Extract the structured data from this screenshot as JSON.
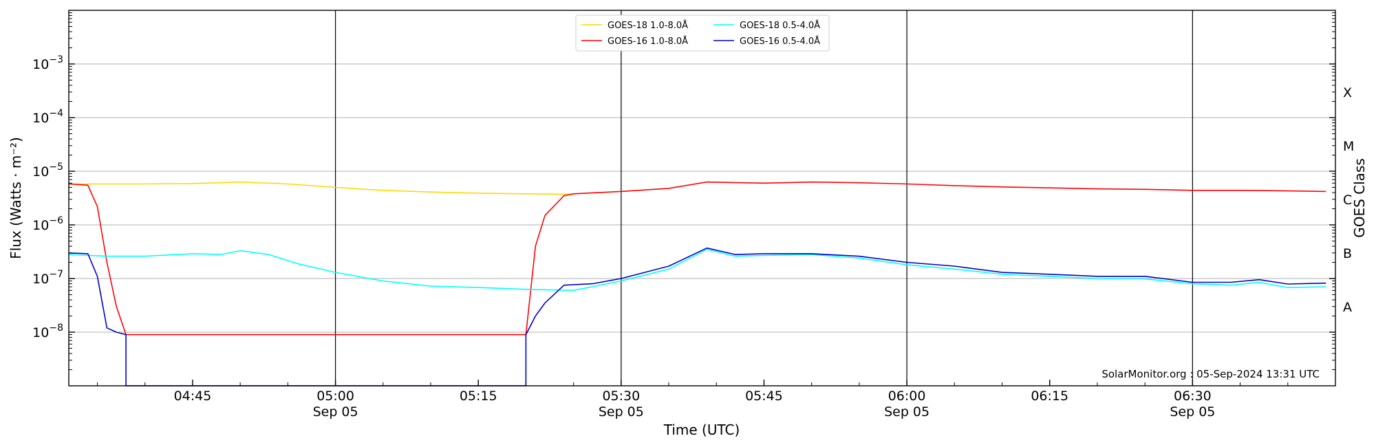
{
  "chart_data": {
    "type": "line",
    "xlabel": "Time (UTC)",
    "ylabel": "Flux (Watts · m⁻²)",
    "ylabel_right": "GOES Class",
    "y_scale": "log",
    "ylim": [
      1e-09,
      0.01
    ],
    "xlim": [
      "2024-09-05T04:32",
      "2024-09-05T06:45"
    ],
    "grid": "horizontal",
    "legend_position": "top-center",
    "watermark": "SolarMonitor.org : 05-Sep-2024 13:31 UTC",
    "y_ticks": [
      {
        "value": 1e-08,
        "base": "10",
        "exp": "−8"
      },
      {
        "value": 1e-07,
        "base": "10",
        "exp": "−7"
      },
      {
        "value": 1e-06,
        "base": "10",
        "exp": "−6"
      },
      {
        "value": 1e-05,
        "base": "10",
        "exp": "−5"
      },
      {
        "value": 0.0001,
        "base": "10",
        "exp": "−4"
      },
      {
        "value": 0.001,
        "base": "10",
        "exp": "−3"
      }
    ],
    "x_ticks": [
      {
        "time": "2024-09-05T04:45",
        "line1": "04:45",
        "line2": "",
        "major": false
      },
      {
        "time": "2024-09-05T05:00",
        "line1": "05:00",
        "line2": "Sep 05",
        "major": true
      },
      {
        "time": "2024-09-05T05:15",
        "line1": "05:15",
        "line2": "",
        "major": false
      },
      {
        "time": "2024-09-05T05:30",
        "line1": "05:30",
        "line2": "Sep 05",
        "major": true
      },
      {
        "time": "2024-09-05T05:45",
        "line1": "05:45",
        "line2": "",
        "major": false
      },
      {
        "time": "2024-09-05T06:00",
        "line1": "06:00",
        "line2": "Sep 05",
        "major": true
      },
      {
        "time": "2024-09-05T06:15",
        "line1": "06:15",
        "line2": "",
        "major": false
      },
      {
        "time": "2024-09-05T06:30",
        "line1": "06:30",
        "line2": "Sep 05",
        "major": true
      }
    ],
    "goes_classes": [
      {
        "label": "A",
        "value": 3e-08
      },
      {
        "label": "B",
        "value": 3e-07
      },
      {
        "label": "C",
        "value": 3e-06
      },
      {
        "label": "M",
        "value": 3e-05
      },
      {
        "label": "X",
        "value": 0.0003
      }
    ],
    "series": [
      {
        "name": "GOES-18 1.0-8.0Å",
        "color": "#FFD700",
        "points": [
          [
            "2024-09-05T04:32",
            5.8e-06
          ],
          [
            "2024-09-05T04:40",
            5.8e-06
          ],
          [
            "2024-09-05T04:45",
            5.9e-06
          ],
          [
            "2024-09-05T04:50",
            6.3e-06
          ],
          [
            "2024-09-05T04:55",
            5.8e-06
          ],
          [
            "2024-09-05T05:00",
            5e-06
          ],
          [
            "2024-09-05T05:05",
            4.4e-06
          ],
          [
            "2024-09-05T05:10",
            4.1e-06
          ],
          [
            "2024-09-05T05:15",
            3.9e-06
          ],
          [
            "2024-09-05T05:20",
            3.8e-06
          ],
          [
            "2024-09-05T05:25",
            3.7e-06
          ]
        ]
      },
      {
        "name": "GOES-16 1.0-8.0Å",
        "color": "#FF0000",
        "points": [
          [
            "2024-09-05T04:32",
            5.8e-06
          ],
          [
            "2024-09-05T04:34",
            5.5e-06
          ],
          [
            "2024-09-05T04:35",
            2.2e-06
          ],
          [
            "2024-09-05T04:36",
            2e-07
          ],
          [
            "2024-09-05T04:37",
            3e-08
          ],
          [
            "2024-09-05T04:38",
            9e-09
          ],
          [
            "2024-09-05T05:20",
            9e-09
          ],
          [
            "2024-09-05T05:21",
            4e-07
          ],
          [
            "2024-09-05T05:22",
            1.5e-06
          ],
          [
            "2024-09-05T05:24",
            3.5e-06
          ],
          [
            "2024-09-05T05:25",
            3.8e-06
          ],
          [
            "2024-09-05T05:30",
            4.2e-06
          ],
          [
            "2024-09-05T05:35",
            4.8e-06
          ],
          [
            "2024-09-05T05:39",
            6.3e-06
          ],
          [
            "2024-09-05T05:45",
            6e-06
          ],
          [
            "2024-09-05T05:50",
            6.3e-06
          ],
          [
            "2024-09-05T05:55",
            6.1e-06
          ],
          [
            "2024-09-05T06:00",
            5.8e-06
          ],
          [
            "2024-09-05T06:05",
            5.4e-06
          ],
          [
            "2024-09-05T06:10",
            5.1e-06
          ],
          [
            "2024-09-05T06:15",
            4.9e-06
          ],
          [
            "2024-09-05T06:20",
            4.7e-06
          ],
          [
            "2024-09-05T06:25",
            4.6e-06
          ],
          [
            "2024-09-05T06:30",
            4.4e-06
          ],
          [
            "2024-09-05T06:35",
            4.4e-06
          ],
          [
            "2024-09-05T06:40",
            4.3e-06
          ],
          [
            "2024-09-05T06:44",
            4.2e-06
          ]
        ]
      },
      {
        "name": "GOES-18 0.5-4.0Å",
        "color": "#00FFFF",
        "points": [
          [
            "2024-09-05T04:32",
            2.8e-07
          ],
          [
            "2024-09-05T04:36",
            2.6e-07
          ],
          [
            "2024-09-05T04:40",
            2.6e-07
          ],
          [
            "2024-09-05T04:45",
            2.9e-07
          ],
          [
            "2024-09-05T04:48",
            2.8e-07
          ],
          [
            "2024-09-05T04:50",
            3.3e-07
          ],
          [
            "2024-09-05T04:53",
            2.8e-07
          ],
          [
            "2024-09-05T04:56",
            1.9e-07
          ],
          [
            "2024-09-05T05:00",
            1.3e-07
          ],
          [
            "2024-09-05T05:05",
            9e-08
          ],
          [
            "2024-09-05T05:10",
            7.2e-08
          ],
          [
            "2024-09-05T05:15",
            6.8e-08
          ],
          [
            "2024-09-05T05:20",
            6.3e-08
          ],
          [
            "2024-09-05T05:25",
            6e-08
          ],
          [
            "2024-09-05T05:30",
            9e-08
          ],
          [
            "2024-09-05T05:35",
            1.5e-07
          ],
          [
            "2024-09-05T05:39",
            3.5e-07
          ],
          [
            "2024-09-05T05:42",
            2.6e-07
          ],
          [
            "2024-09-05T05:45",
            2.7e-07
          ],
          [
            "2024-09-05T05:50",
            2.8e-07
          ],
          [
            "2024-09-05T05:55",
            2.4e-07
          ],
          [
            "2024-09-05T06:00",
            1.8e-07
          ],
          [
            "2024-09-05T06:05",
            1.5e-07
          ],
          [
            "2024-09-05T06:10",
            1.2e-07
          ],
          [
            "2024-09-05T06:15",
            1.1e-07
          ],
          [
            "2024-09-05T06:20",
            1e-07
          ],
          [
            "2024-09-05T06:25",
            9.8e-08
          ],
          [
            "2024-09-05T06:30",
            8e-08
          ],
          [
            "2024-09-05T06:34",
            7.5e-08
          ],
          [
            "2024-09-05T06:37",
            8.5e-08
          ],
          [
            "2024-09-05T06:40",
            6.8e-08
          ],
          [
            "2024-09-05T06:44",
            7e-08
          ]
        ]
      },
      {
        "name": "GOES-16 0.5-4.0Å",
        "color": "#0000CC",
        "points": [
          [
            "2024-09-05T04:32",
            3e-07
          ],
          [
            "2024-09-05T04:34",
            2.9e-07
          ],
          [
            "2024-09-05T04:35",
            1.1e-07
          ],
          [
            "2024-09-05T04:36",
            1.2e-08
          ],
          [
            "2024-09-05T04:37",
            1e-08
          ],
          [
            "2024-09-05T04:38",
            9e-09
          ],
          [
            "2024-09-05T04:38",
            1e-09
          ],
          [
            "2024-09-05T05:20",
            1e-09
          ],
          [
            "2024-09-05T05:20",
            9e-09
          ],
          [
            "2024-09-05T05:21",
            2e-08
          ],
          [
            "2024-09-05T05:22",
            3.5e-08
          ],
          [
            "2024-09-05T05:24",
            7.5e-08
          ],
          [
            "2024-09-05T05:27",
            8e-08
          ],
          [
            "2024-09-05T05:30",
            1e-07
          ],
          [
            "2024-09-05T05:35",
            1.7e-07
          ],
          [
            "2024-09-05T05:39",
            3.7e-07
          ],
          [
            "2024-09-05T05:42",
            2.8e-07
          ],
          [
            "2024-09-05T05:45",
            2.9e-07
          ],
          [
            "2024-09-05T05:50",
            2.9e-07
          ],
          [
            "2024-09-05T05:55",
            2.6e-07
          ],
          [
            "2024-09-05T06:00",
            2e-07
          ],
          [
            "2024-09-05T06:05",
            1.7e-07
          ],
          [
            "2024-09-05T06:10",
            1.3e-07
          ],
          [
            "2024-09-05T06:15",
            1.2e-07
          ],
          [
            "2024-09-05T06:20",
            1.1e-07
          ],
          [
            "2024-09-05T06:25",
            1.1e-07
          ],
          [
            "2024-09-05T06:30",
            8.5e-08
          ],
          [
            "2024-09-05T06:34",
            8.5e-08
          ],
          [
            "2024-09-05T06:37",
            9.5e-08
          ],
          [
            "2024-09-05T06:40",
            7.9e-08
          ],
          [
            "2024-09-05T06:44",
            8.2e-08
          ]
        ]
      }
    ]
  }
}
